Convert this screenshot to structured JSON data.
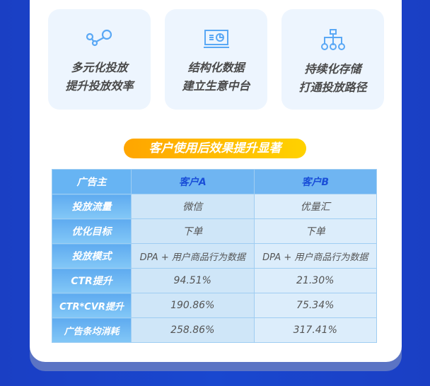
{
  "features": [
    {
      "icon": "nodes-icon",
      "line1": "多元化投放",
      "line2": "提升投放效率"
    },
    {
      "icon": "monitor-chart-icon",
      "line1": "结构化数据",
      "line2": "建立生意中台"
    },
    {
      "icon": "hierarchy-icon",
      "line1": "持续化存储",
      "line2": "打通投放路径"
    }
  ],
  "banner": "客户使用后效果提升显著",
  "table": {
    "headers": [
      "广告主",
      "客户A",
      "客户B"
    ],
    "rows": [
      [
        "投放流量",
        "微信",
        "优量汇"
      ],
      [
        "优化目标",
        "下单",
        "下单"
      ],
      [
        "投放模式",
        "DPA + 用户商品行为数据",
        "DPA + 用户商品行为数据"
      ],
      [
        "CTR提升",
        "94.51%",
        "21.30%"
      ],
      [
        "CTR*CVR提升",
        "190.86%",
        "75.34%"
      ],
      [
        "广告条均消耗",
        "258.86%",
        "317.41%"
      ]
    ]
  },
  "colors": {
    "background": "#1a3fc4",
    "icon": "#5aa8f5",
    "banner": "#ffb400"
  }
}
